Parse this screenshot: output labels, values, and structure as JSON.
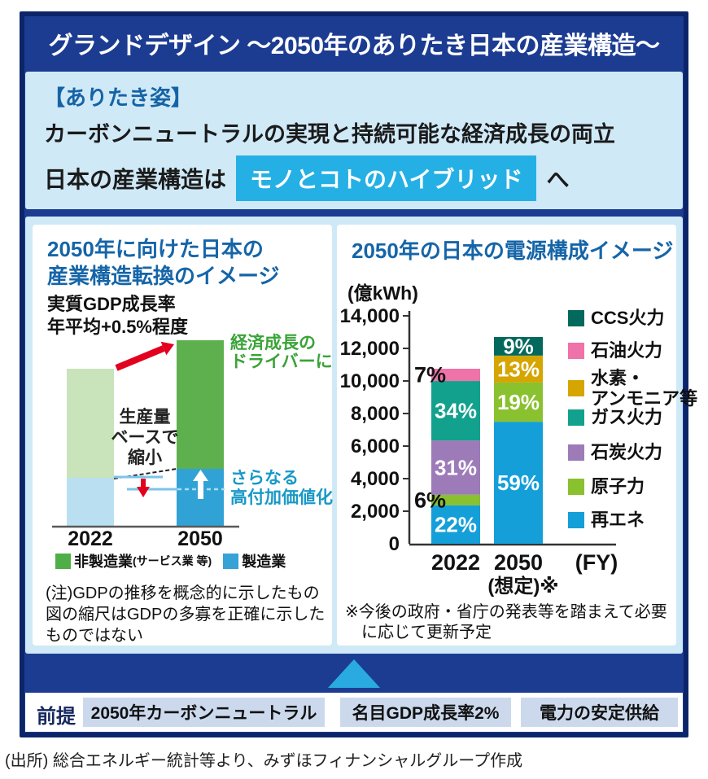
{
  "header": {
    "title": "グランドデザイン ～2050年のありたき日本の産業構造～"
  },
  "vision": {
    "heading": "【ありたき姿】",
    "line1": "カーボンニュートラルの実現と持続可能な経済成長の両立",
    "line2_prefix": "日本の産業構造は",
    "line2_highlight": "モノとコトのハイブリッド",
    "line2_suffix": "へ",
    "highlight_color": "#25b0e5"
  },
  "chart_data": [
    {
      "type": "bar",
      "subtype": "conceptual stacked bars (no numeric axis)",
      "title": "2050年に向けた日本の産業構造転換のイメージ",
      "title_lines": [
        "2050年に向けた日本の",
        "産業構造転換のイメージ"
      ],
      "gdp_lines": [
        "実質GDP成長率",
        "年平均+0.5%程度"
      ],
      "categories": [
        "2022",
        "2050"
      ],
      "bars": [
        {
          "label": "2022",
          "segments": [
            {
              "name": "製造業",
              "h": 59,
              "color": "#b9dff1"
            },
            {
              "name": "非製造業",
              "h": 134,
              "color": "#c9e3ba"
            }
          ]
        },
        {
          "label": "2050",
          "segments": [
            {
              "name": "製造業",
              "h": 70,
              "color": "#31a2d6"
            },
            {
              "name": "非製造業",
              "h": 158,
              "color": "#5eb04e"
            }
          ]
        }
      ],
      "x_labels": [
        "2022",
        "2050"
      ],
      "growth_driver_lines": [
        "経済成長の",
        "ドライバーに"
      ],
      "shrink_lines": [
        "生産量",
        "ベースで",
        "縮小"
      ],
      "value_add_lines": [
        "さらなる",
        "高付加価値化"
      ],
      "legend": [
        {
          "label": "非製造業",
          "sub": "(サービス業 等)",
          "color": "#4fae47"
        },
        {
          "label": "製造業",
          "sub": "",
          "color": "#36a3d6"
        }
      ],
      "note_lines": [
        "(注)GDPの推移を概念的に示したもの",
        "図の縮尺はGDPの多寡を正確に示した",
        "ものではない"
      ],
      "arrow_color": "#e3001f"
    },
    {
      "type": "bar",
      "subtype": "stacked composition, absolute scale",
      "title": "2050年の日本の電源構成イメージ",
      "unit_label": "(億kWh)",
      "ylim": [
        0,
        14000
      ],
      "ymax": 14000,
      "ytick_step": 2000,
      "yticks": [
        "14,000",
        "12,000",
        "10,000",
        "8,000",
        "6,000",
        "4,000",
        "2,000",
        "0"
      ],
      "bars": [
        {
          "x_label": "2022",
          "x_label2": "",
          "total": 10750,
          "segments": [
            {
              "name": "再エネ",
              "pct": 22,
              "color": "#149fd9",
              "label": "22%",
              "label_pos": "inside"
            },
            {
              "name": "原子力",
              "pct": 6,
              "color": "#89c12f",
              "label": "6%",
              "label_pos": "left"
            },
            {
              "name": "石炭火力",
              "pct": 31,
              "color": "#9d7bb8",
              "label": "31%",
              "label_pos": "inside"
            },
            {
              "name": "ガス火力",
              "pct": 34,
              "color": "#12a18d",
              "label": "34%",
              "label_pos": "inside"
            },
            {
              "name": "石油火力",
              "pct": 7,
              "color": "#ef72a8",
              "label": "7%",
              "label_pos": "left"
            }
          ]
        },
        {
          "x_label": "2050",
          "x_label2": "(想定)※",
          "total": 12700,
          "segments": [
            {
              "name": "再エネ",
              "pct": 59,
              "color": "#149fd9",
              "label": "59%",
              "label_pos": "inside"
            },
            {
              "name": "原子力",
              "pct": 19,
              "color": "#89c12f",
              "label": "19%",
              "label_pos": "inside"
            },
            {
              "name": "水素・アンモニア等",
              "pct": 13,
              "color": "#d5a500",
              "label": "13%",
              "label_pos": "inside"
            },
            {
              "name": "CCS火力",
              "pct": 9,
              "color": "#03695c",
              "label": "9%",
              "label_pos": "inside"
            }
          ]
        }
      ],
      "fy_label": "(FY)",
      "legend": [
        {
          "lines": [
            "CCS火力"
          ],
          "color": "#03695c"
        },
        {
          "lines": [
            "石油火力"
          ],
          "color": "#ef72a8"
        },
        {
          "lines": [
            "水素・",
            "アンモニア等"
          ],
          "color": "#d5a500"
        },
        {
          "lines": [
            "ガス火力"
          ],
          "color": "#12a18d"
        },
        {
          "lines": [
            "石炭火力"
          ],
          "color": "#9d7bb8"
        },
        {
          "lines": [
            "原子力"
          ],
          "color": "#89c12f"
        },
        {
          "lines": [
            "再エネ"
          ],
          "color": "#149fd9"
        }
      ],
      "note_lines": [
        "※今後の政府・省庁の発表等を踏まえて必要",
        "に応じて更新予定"
      ]
    }
  ],
  "premise": {
    "label": "前提",
    "items": [
      "2050年カーボンニュートラル",
      "名目GDP成長率2%",
      "電力の安定供給"
    ]
  },
  "footer": {
    "source": "(出所) 総合エネルギー統計等より、みずほフィナンシャルグループ作成"
  }
}
